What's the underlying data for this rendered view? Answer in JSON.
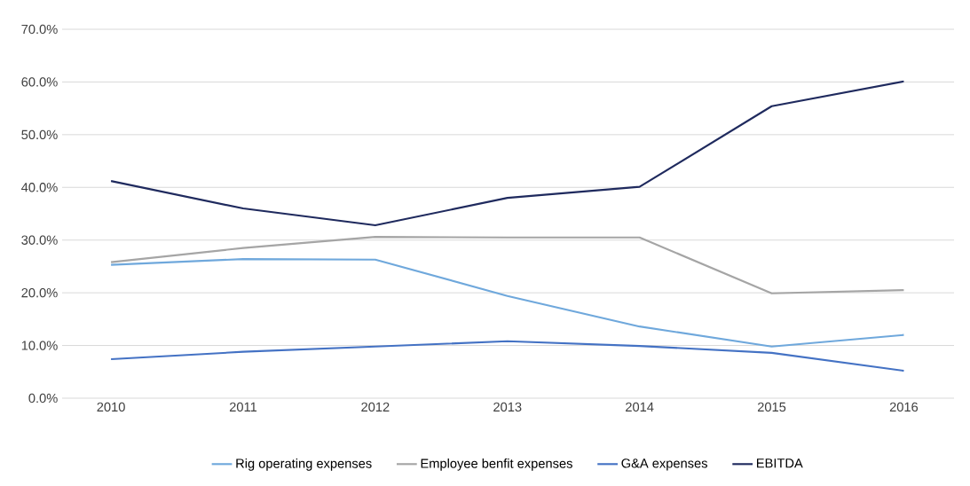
{
  "chart_data": {
    "type": "line",
    "categories": [
      "2010",
      "2011",
      "2012",
      "2013",
      "2014",
      "2015",
      "2016"
    ],
    "series": [
      {
        "name": "Rig operating expenses",
        "color": "#6fa8dc",
        "values": [
          25.3,
          26.4,
          26.3,
          19.4,
          13.6,
          9.8,
          12.0
        ]
      },
      {
        "name": "Employee benfit expenses",
        "color": "#a5a5a5",
        "values": [
          25.8,
          28.5,
          30.6,
          30.5,
          30.5,
          19.9,
          20.5
        ]
      },
      {
        "name": "G&A expenses",
        "color": "#4472c4",
        "values": [
          7.4,
          8.8,
          9.8,
          10.8,
          9.9,
          8.6,
          5.2
        ]
      },
      {
        "name": "EBITDA",
        "color": "#1f2a5e",
        "values": [
          41.2,
          36.0,
          32.8,
          38.0,
          40.1,
          55.4,
          60.1
        ]
      }
    ],
    "ylim": [
      0,
      70
    ],
    "yticks": [
      {
        "value": 0,
        "label": "0.0%"
      },
      {
        "value": 10,
        "label": "10.0%"
      },
      {
        "value": 20,
        "label": "20.0%"
      },
      {
        "value": 30,
        "label": "30.0%"
      },
      {
        "value": 40,
        "label": "40.0%"
      },
      {
        "value": 50,
        "label": "50.0%"
      },
      {
        "value": 60,
        "label": "60.0%"
      },
      {
        "value": 70,
        "label": "70.0%"
      }
    ],
    "grid": "y",
    "legend": "bottom",
    "marker": "none",
    "line_style": "solid"
  }
}
